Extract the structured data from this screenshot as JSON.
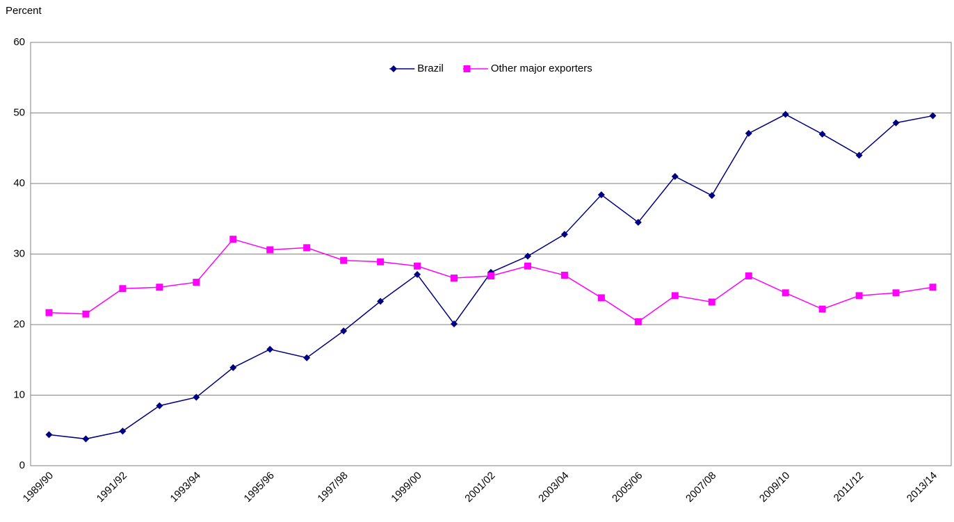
{
  "chart_data": {
    "type": "line",
    "y_axis_label": "Percent",
    "categories": [
      "1989/90",
      null,
      "1991/92",
      null,
      "1993/94",
      null,
      "1995/96",
      null,
      "1997/98",
      null,
      "1999/00",
      null,
      "2001/02",
      null,
      "2003/04",
      null,
      "2005/06",
      null,
      "2007/08",
      null,
      "2009/10",
      null,
      "2011/12",
      null,
      "2013/14"
    ],
    "series": [
      {
        "name": "Brazil",
        "color": "#000080",
        "marker": "diamond",
        "values": [
          4.4,
          3.8,
          4.9,
          8.5,
          9.7,
          13.9,
          16.5,
          15.3,
          19.1,
          23.3,
          27.1,
          20.1,
          27.4,
          29.7,
          32.8,
          38.4,
          34.5,
          41.0,
          38.3,
          47.1,
          49.8,
          47.0,
          44.0,
          48.6,
          49.6
        ]
      },
      {
        "name": "Other major exporters",
        "color": "#ff00ff",
        "marker": "square",
        "values": [
          21.7,
          21.5,
          25.1,
          25.3,
          26.0,
          32.1,
          30.6,
          30.9,
          29.1,
          28.9,
          28.3,
          26.6,
          26.9,
          28.3,
          27.0,
          23.8,
          20.4,
          24.1,
          23.2,
          26.9,
          24.5,
          22.2,
          24.1,
          24.5,
          25.3
        ]
      }
    ],
    "ylim": [
      0,
      60
    ],
    "yticks": [
      0,
      10,
      20,
      30,
      40,
      50,
      60
    ],
    "grid": true,
    "legend": "top-center"
  }
}
